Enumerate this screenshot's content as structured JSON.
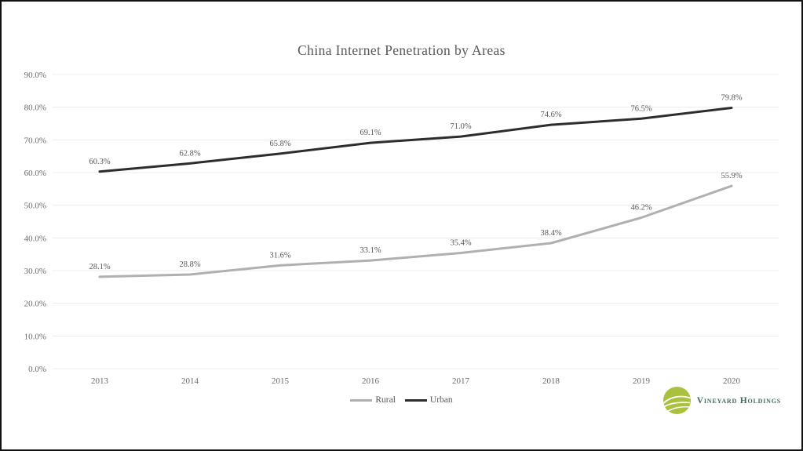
{
  "chart_data": {
    "type": "line",
    "title": "China Internet Penetration by Areas",
    "categories": [
      "2013",
      "2014",
      "2015",
      "2016",
      "2017",
      "2018",
      "2019",
      "2020"
    ],
    "series": [
      {
        "name": "Rural",
        "color": "#b3afaf",
        "values": [
          28.1,
          28.8,
          31.6,
          33.1,
          35.4,
          38.4,
          46.2,
          55.9
        ],
        "labels": [
          "28.1%",
          "28.8%",
          "31.6%",
          "33.1%",
          "35.4%",
          "38.4%",
          "46.2%",
          "55.9%"
        ]
      },
      {
        "name": "Urban",
        "color": "#2d2d2d",
        "values": [
          60.3,
          62.8,
          65.8,
          69.1,
          71.0,
          74.6,
          76.5,
          79.8
        ],
        "labels": [
          "60.3%",
          "62.8%",
          "65.8%",
          "69.1%",
          "71.0%",
          "74.6%",
          "76.5%",
          "79.8%"
        ]
      }
    ],
    "xlabel": "",
    "ylabel": "",
    "ylim": [
      0,
      90
    ],
    "ytick_step": 10,
    "yticks": [
      "0.0%",
      "10.0%",
      "20.0%",
      "30.0%",
      "40.0%",
      "50.0%",
      "60.0%",
      "70.0%",
      "80.0%",
      "90.0%"
    ],
    "grid": true,
    "gridline_color": "#ececec",
    "legend_position": "bottom-center",
    "data_labels": true
  },
  "legend": {
    "items": [
      {
        "label": "Rural",
        "color": "#b3afaf"
      },
      {
        "label": "Urban",
        "color": "#2d2d2d"
      }
    ]
  },
  "branding": {
    "name": "Vineyard Holdings",
    "icon": "vineyard-logo-icon",
    "icon_color": "#a8c13e",
    "text_color": "#3f6b55"
  }
}
